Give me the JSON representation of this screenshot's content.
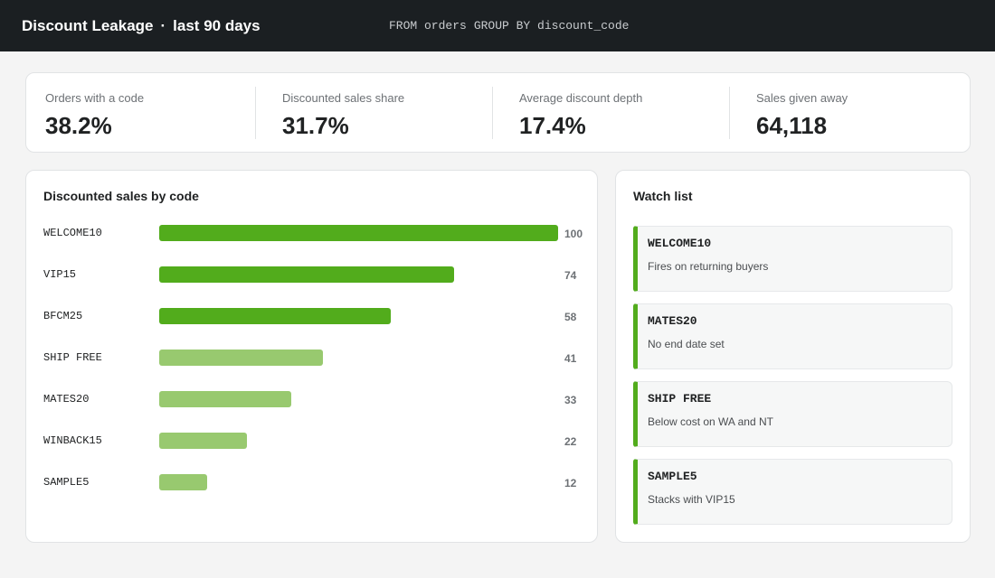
{
  "header": {
    "title": "Discount Leakage",
    "separator": "·",
    "period": "last 90 days",
    "query_from": "FROM orders",
    "query_group": "GROUP BY discount_code"
  },
  "kpis": [
    {
      "label": "Orders with a code",
      "value": "38.2%"
    },
    {
      "label": "Discounted sales share",
      "value": "31.7%"
    },
    {
      "label": "Average discount depth",
      "value": "17.4%"
    },
    {
      "label": "Sales given away",
      "value": "64,118"
    }
  ],
  "chart_data": {
    "type": "bar",
    "orientation": "horizontal",
    "title": "Discounted sales by code",
    "categories": [
      "WELCOME10",
      "VIP15",
      "BFCM25",
      "SHIP FREE",
      "MATES20",
      "WINBACK15",
      "SAMPLE5"
    ],
    "values": [
      100,
      74,
      58,
      41,
      33,
      22,
      12
    ],
    "xlim": [
      0,
      100
    ],
    "grid": false,
    "colors": {
      "top": "#52ac1c",
      "rest": "#98c96f"
    },
    "highlight_count": 3
  },
  "watchlist": {
    "title": "Watch list",
    "accent": "#52ac1c",
    "items": [
      {
        "code": "WELCOME10",
        "note": "Fires on returning buyers"
      },
      {
        "code": "MATES20",
        "note": "No end date set"
      },
      {
        "code": "SHIP FREE",
        "note": "Below cost on WA and NT"
      },
      {
        "code": "SAMPLE5",
        "note": "Stacks with VIP15"
      }
    ]
  }
}
